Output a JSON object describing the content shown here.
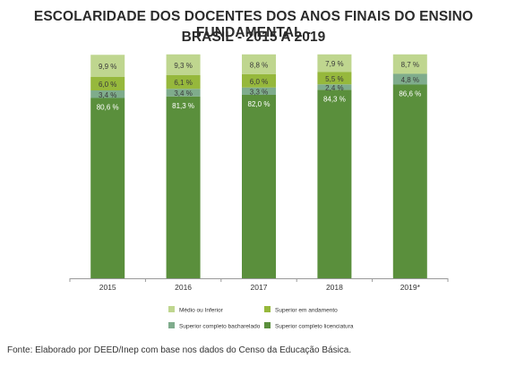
{
  "title_line1": "ESCOLARIDADE DOS DOCENTES DOS ANOS FINAIS DO ENSINO FUNDAMENTAL -",
  "title_line2": "BRASIL - 2015 A 2019",
  "source": "Fonte: Elaborado por DEED/Inep com base nos dados do Censo da Educação Básica.",
  "chart_data": {
    "type": "bar",
    "stacked": true,
    "percent_scale": true,
    "categories": [
      "2015",
      "2016",
      "2017",
      "2018",
      "2019*"
    ],
    "series": [
      {
        "name": "Superior completo licenciatura",
        "color": "#5a8f3c",
        "values": [
          80.6,
          81.3,
          82.0,
          84.3,
          86.6
        ],
        "labels": [
          "80,6 %",
          "81,3 %",
          "82,0 %",
          "84,3 %",
          "86,6 %"
        ]
      },
      {
        "name": "Superior completo bacharelado",
        "color": "#7fac8c",
        "values": [
          3.4,
          3.4,
          3.3,
          2.4,
          4.8
        ],
        "labels": [
          "3,4 %",
          "3,4 %",
          "3,3 %",
          "2,4 %",
          "4,8 %"
        ]
      },
      {
        "name": "Superior em andamento",
        "color": "#96b83c",
        "values": [
          6.0,
          6.1,
          6.0,
          5.5,
          0
        ],
        "labels": [
          "6,0 %",
          "6,1 %",
          "6,0 %",
          "5,5 %",
          ""
        ]
      },
      {
        "name": "Médio ou Inferior",
        "color": "#bfd68f",
        "values": [
          9.9,
          9.3,
          8.8,
          7.9,
          8.7
        ],
        "labels": [
          "9,9 %",
          "9,3 %",
          "8,8 %",
          "7,9 %",
          "8,7 %"
        ]
      }
    ],
    "legend": {
      "position": "bottom",
      "items": [
        {
          "name": "Médio ou Inferior",
          "color": "#bfd68f"
        },
        {
          "name": "Superior em andamento",
          "color": "#96b83c"
        },
        {
          "name": "Superior completo bacharelado",
          "color": "#7fac8c"
        },
        {
          "name": "Superior completo licenciatura",
          "color": "#5a8f3c"
        }
      ]
    },
    "xlabel": "",
    "ylabel": "",
    "grid": false
  }
}
